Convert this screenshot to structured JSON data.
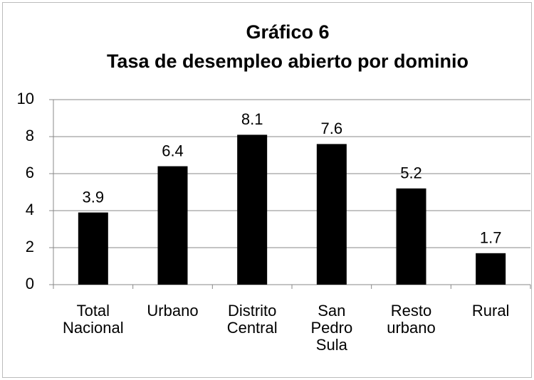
{
  "chart_data": {
    "type": "bar",
    "title": "Gráfico 6",
    "subtitle": "Tasa de desempleo abierto por dominio",
    "categories": [
      "Total Nacional",
      "Urbano",
      "Distrito Central",
      "San Pedro Sula",
      "Resto urbano",
      "Rural"
    ],
    "values": [
      3.9,
      6.4,
      8.1,
      7.6,
      5.2,
      1.7
    ],
    "color": "#000000",
    "ylim": [
      0,
      10
    ],
    "yticks": [
      0,
      2,
      4,
      6,
      8,
      10
    ],
    "grid": true
  }
}
